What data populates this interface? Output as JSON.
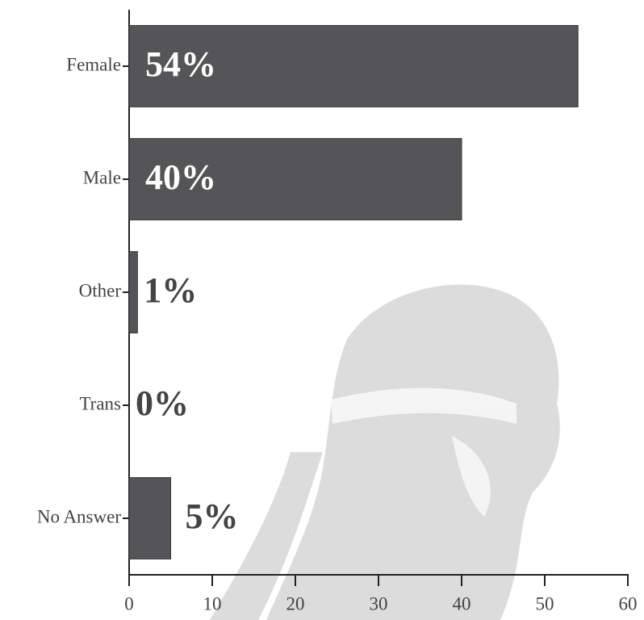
{
  "chart_data": {
    "type": "bar",
    "orientation": "horizontal",
    "categories": [
      "Female",
      "Male",
      "Other",
      "Trans",
      "No Answer"
    ],
    "values": [
      54,
      40,
      1,
      0,
      5
    ],
    "value_labels": [
      "54%",
      "40%",
      "1%",
      "0%",
      "5%"
    ],
    "color": "#555557",
    "xlim": [
      0,
      60
    ],
    "xticks": [
      0,
      10,
      20,
      30,
      40,
      50,
      60
    ]
  }
}
